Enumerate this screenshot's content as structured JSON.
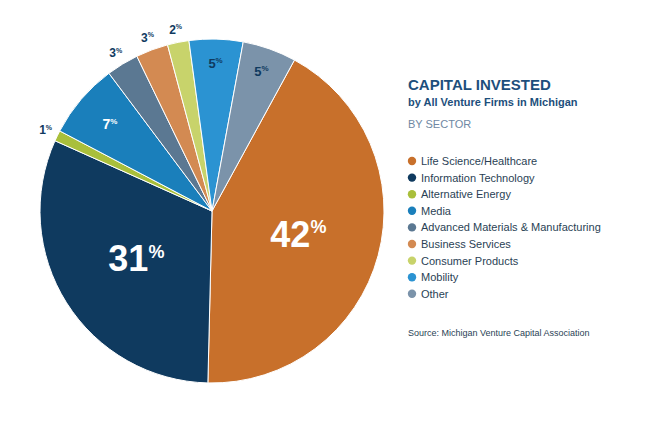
{
  "chart_data": {
    "type": "pie",
    "title": "CAPITAL INVESTED",
    "subtitle": "by All Venture Firms in Michigan",
    "annotations": [
      "BY SECTOR",
      "Source: Michigan Venture Capital Association"
    ],
    "categories": [
      "Life Science/Healthcare",
      "Information Technology",
      "Alternative Energy",
      "Media",
      "Advanced Materials & Manufacturing",
      "Business Services",
      "Consumer Products",
      "Mobility",
      "Other"
    ],
    "values": [
      42,
      31,
      1,
      7,
      3,
      3,
      2,
      5,
      5
    ],
    "value_labels": [
      "42%",
      "31%",
      "1%",
      "7%",
      "3%",
      "3%",
      "2%",
      "5%",
      "5%"
    ],
    "colors": [
      "#c8702b",
      "#0f3a5f",
      "#a9bf3b",
      "#1a7fbb",
      "#5b7892",
      "#d38a52",
      "#c8d36b",
      "#2b93d2",
      "#7b93aa"
    ],
    "data_labels": true,
    "legend": "right"
  }
}
